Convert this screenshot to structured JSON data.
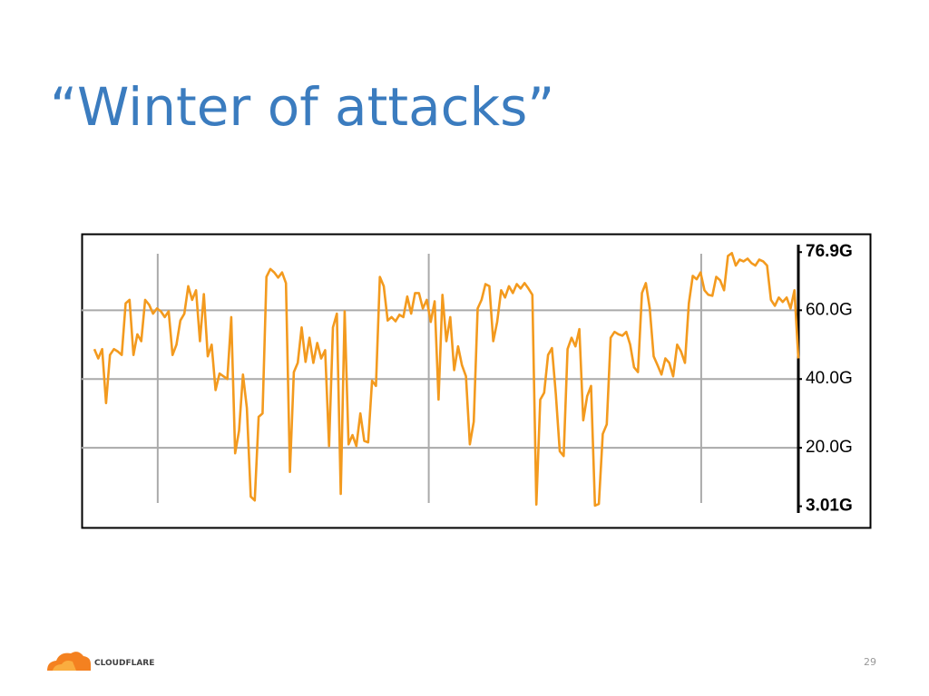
{
  "slide": {
    "title": "“Winter of attacks”",
    "logo_text": "CLOUDFLARE",
    "page_number": "29"
  },
  "chart_data": {
    "type": "line",
    "color": "#f39a1e",
    "values": [
      48.7,
      46,
      48.7,
      33,
      47,
      48.7,
      48,
      47,
      62,
      63,
      47,
      53,
      51,
      63,
      61.6,
      59,
      60.5,
      59.7,
      58,
      59.7,
      47,
      50,
      57,
      59,
      67,
      63,
      65.8,
      51,
      64.7,
      46.6,
      50,
      36.8,
      41.6,
      40.8,
      40,
      58,
      18.4,
      25,
      41.3,
      31.6,
      5.8,
      4.7,
      29,
      30,
      69.7,
      72,
      71,
      69.5,
      71,
      67.9,
      13,
      42,
      44.7,
      55,
      45,
      52,
      44.7,
      50.5,
      46,
      48.4,
      20.5,
      55,
      59,
      6.6,
      59.7,
      21,
      23.7,
      20.5,
      30,
      22,
      21.6,
      39.5,
      38,
      69.7,
      67,
      57,
      58,
      56.8,
      58.7,
      58,
      64,
      59,
      65,
      65,
      60.5,
      63,
      56.6,
      62.6,
      34,
      64.5,
      51,
      58,
      42.6,
      49.5,
      44,
      40.8,
      21,
      27.6,
      60.5,
      63,
      67.6,
      67,
      51,
      56.6,
      65.8,
      63.7,
      67,
      65,
      67.6,
      66.3,
      67.9,
      66.3,
      64.5,
      3.5,
      34,
      36,
      47,
      49,
      35.5,
      19,
      17.6,
      48.7,
      52,
      49.5,
      54.5,
      28,
      35,
      38,
      3.2,
      3.7,
      24,
      26.8,
      52,
      53.7,
      53,
      52.6,
      53.7,
      50,
      43.4,
      42,
      65,
      67.9,
      60.5,
      46.6,
      44,
      41.3,
      46,
      44.7,
      40.8,
      50,
      48,
      44.7,
      62,
      70,
      69,
      71,
      65.8,
      64.5,
      64.2,
      69.7,
      68.7,
      65.8,
      75.8,
      76.6,
      73,
      74.7,
      74.2,
      75,
      73.7,
      73,
      74.7,
      74.2,
      73,
      63,
      61.3,
      63.7,
      62.4,
      63.7,
      60.5,
      65.8,
      46
    ],
    "ylim": [
      3.01,
      76.9
    ],
    "yticks": [
      {
        "value": 76.9,
        "label": "76.9G"
      },
      {
        "value": 60.0,
        "label": "60.0G"
      },
      {
        "value": 40.0,
        "label": "40.0G"
      },
      {
        "value": 20.0,
        "label": "20.0G"
      },
      {
        "value": 3.01,
        "label": "3.01G"
      }
    ],
    "grid": true
  }
}
